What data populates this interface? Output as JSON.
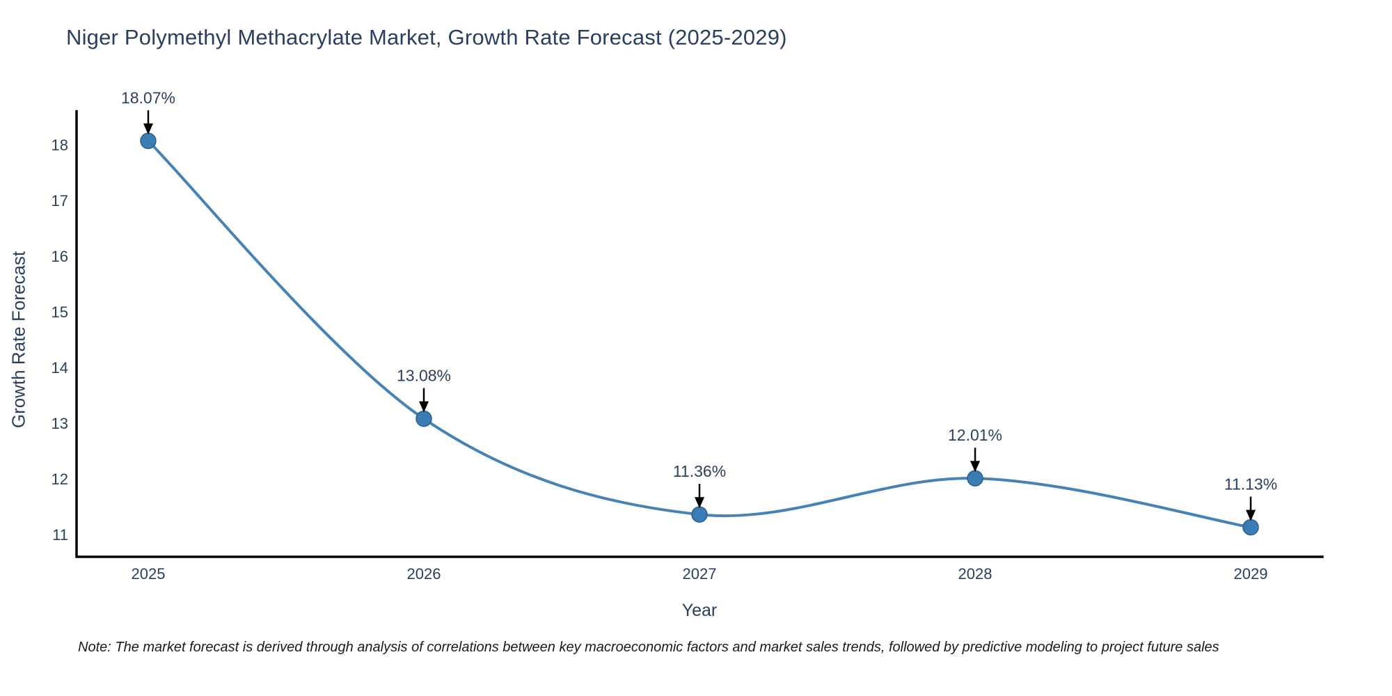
{
  "title": "Niger Polymethyl Methacrylate Market, Growth Rate Forecast (2025-2029)",
  "note": "Note: The market forecast is derived through analysis of correlations between key macroeconomic factors and market sales trends, followed by predictive modeling to project future sales",
  "chart_data": {
    "type": "line",
    "title": "Niger Polymethyl Methacrylate Market, Growth Rate Forecast (2025-2029)",
    "xlabel": "Year",
    "ylabel": "Growth Rate Forecast",
    "x": [
      2025,
      2026,
      2027,
      2028,
      2029
    ],
    "series": [
      {
        "name": "Growth Rate Forecast",
        "values": [
          18.07,
          13.08,
          11.36,
          12.01,
          11.13
        ]
      }
    ],
    "point_labels": [
      "18.07%",
      "13.08%",
      "11.36%",
      "12.01%",
      "11.13%"
    ],
    "yticks": [
      11,
      12,
      13,
      14,
      15,
      16,
      17,
      18
    ],
    "xticks": [
      2025,
      2026,
      2027,
      2028,
      2029
    ],
    "xlim": [
      2024.74,
      2029.26
    ],
    "ylim": [
      10.6,
      18.6
    ],
    "grid": false,
    "legend": "none",
    "line_shape": "spline",
    "colors": {
      "line": "#4682b4",
      "marker": "#3c7cb5",
      "marker_edge": "#2a5f8f",
      "arrow": "#000000",
      "text": "#2a3f5f",
      "axis": "#000000",
      "note_text": "#1a1a1a",
      "background": "#ffffff"
    }
  }
}
